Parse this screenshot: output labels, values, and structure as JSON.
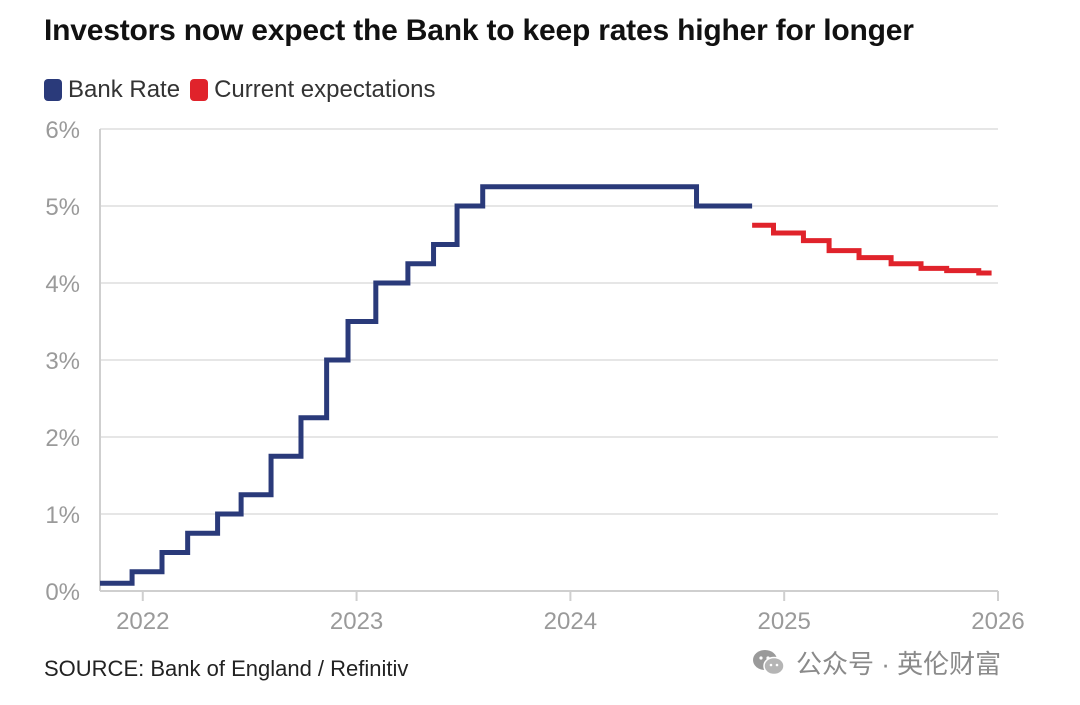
{
  "title": "Investors now expect the Bank to keep rates higher for longer",
  "legend": [
    {
      "label": "Bank Rate",
      "color": "#2a3a7a"
    },
    {
      "label": "Current expectations",
      "color": "#e0232b"
    }
  ],
  "source": "SOURCE: Bank of England / Refinitiv",
  "watermark": {
    "text": "公众号 · 英伦财富",
    "icon": "wechat-icon"
  },
  "chart_data": {
    "type": "line",
    "title": "Investors now expect the Bank to keep rates higher for longer",
    "xlabel": "",
    "ylabel": "",
    "xlim": [
      2021.8,
      2026
    ],
    "ylim": [
      0,
      6
    ],
    "grid": true,
    "legend_position": "top-left",
    "x_ticks": [
      2022,
      2023,
      2024,
      2025,
      2026
    ],
    "x_tick_labels": [
      "2022",
      "2023",
      "2024",
      "2025",
      "2026"
    ],
    "y_ticks": [
      0,
      1,
      2,
      3,
      4,
      5,
      6
    ],
    "y_tick_labels": [
      "0%",
      "1%",
      "2%",
      "3%",
      "4%",
      "5%",
      "6%"
    ],
    "series": [
      {
        "name": "Bank Rate",
        "color": "#2a3a7a",
        "step": true,
        "points": [
          [
            2021.8,
            0.1
          ],
          [
            2021.95,
            0.25
          ],
          [
            2022.09,
            0.5
          ],
          [
            2022.21,
            0.75
          ],
          [
            2022.35,
            1.0
          ],
          [
            2022.46,
            1.25
          ],
          [
            2022.6,
            1.75
          ],
          [
            2022.74,
            2.25
          ],
          [
            2022.86,
            3.0
          ],
          [
            2022.96,
            3.5
          ],
          [
            2023.09,
            4.0
          ],
          [
            2023.24,
            4.25
          ],
          [
            2023.36,
            4.5
          ],
          [
            2023.47,
            5.0
          ],
          [
            2023.59,
            5.25
          ],
          [
            2024.59,
            5.0
          ],
          [
            2024.85,
            5.0
          ]
        ]
      },
      {
        "name": "Current expectations",
        "color": "#e0232b",
        "step": true,
        "points": [
          [
            2024.85,
            4.75
          ],
          [
            2024.95,
            4.65
          ],
          [
            2025.09,
            4.55
          ],
          [
            2025.21,
            4.42
          ],
          [
            2025.35,
            4.33
          ],
          [
            2025.5,
            4.25
          ],
          [
            2025.64,
            4.19
          ],
          [
            2025.76,
            4.16
          ],
          [
            2025.91,
            4.13
          ],
          [
            2025.97,
            4.13
          ]
        ]
      }
    ]
  }
}
